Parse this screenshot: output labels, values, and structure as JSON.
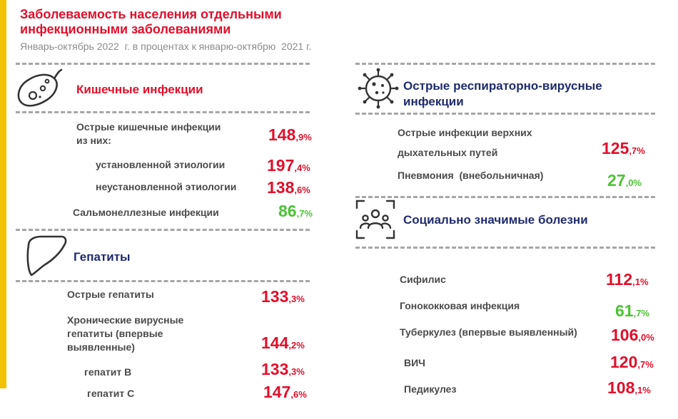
{
  "header": {
    "title_line1": "Заболеваемость населения отдельными",
    "title_line2": "инфекционными заболеваниями",
    "subtitle": "Январь-октябрь 2022  г. в процентах к январю-октябрю  2021 г."
  },
  "colors": {
    "red": "#e0102c",
    "green": "#4cc333",
    "navy": "#1f2b6e",
    "accent": "#f2c200"
  },
  "intestinal": {
    "title": "Кишечные инфекции",
    "icon": "bacterium-icon",
    "rows": [
      {
        "label": "Острые кишечные инфекции\nиз них:",
        "int": "148",
        "frac": ",9%",
        "trend": "red"
      },
      {
        "label": "установленной этиологии",
        "int": "197",
        "frac": ",4%",
        "trend": "red"
      },
      {
        "label": "неустановленной этиологии",
        "int": "138",
        "frac": ",6%",
        "trend": "red"
      },
      {
        "label": "Сальмонеллезные инфекции",
        "int": "86",
        "frac": ",7%",
        "trend": "green"
      }
    ]
  },
  "hepatitis": {
    "title": "Гепатиты",
    "icon": "liver-icon",
    "rows": [
      {
        "label": "Острые гепатиты",
        "int": "133",
        "frac": ",3%",
        "trend": "red"
      },
      {
        "label": "Хронические вирусные\nгепатиты (впервые\nвыявленные)",
        "int": "144",
        "frac": ",2%",
        "trend": "red"
      },
      {
        "label": "гепатит В",
        "int": "133",
        "frac": ",3%",
        "trend": "red"
      },
      {
        "label": "гепатит С",
        "int": "147",
        "frac": ",6%",
        "trend": "red"
      }
    ]
  },
  "respiratory": {
    "title_line1": "Острые респираторно-вирусные",
    "title_line2": "инфекции",
    "icon": "virus-icon",
    "rows": [
      {
        "label": "Острые инфекции верхних",
        "label2": "дыхательных путей",
        "int": "125",
        "frac": ",7%",
        "trend": "red"
      },
      {
        "label": "Пневмония  (внебольничная)",
        "int": "27",
        "frac": ",0%",
        "trend": "green"
      }
    ]
  },
  "social": {
    "title": "Социально значимые болезни",
    "icon": "people-group-icon",
    "rows": [
      {
        "label": "Сифилис",
        "int": "112",
        "frac": ",1%",
        "trend": "red"
      },
      {
        "label": "Гонококковая инфекция",
        "int": "61",
        "frac": ",7%",
        "trend": "green"
      },
      {
        "label": "Туберкулез (впервые выявленный)",
        "int": "106",
        "frac": ",0%",
        "trend": "red"
      },
      {
        "label": "ВИЧ",
        "int": "120",
        "frac": ",7%",
        "trend": "red"
      },
      {
        "label": "Педикулез",
        "int": "108",
        "frac": ",1%",
        "trend": "red"
      }
    ]
  }
}
